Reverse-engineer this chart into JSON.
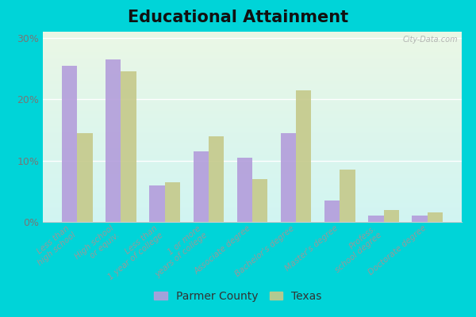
{
  "title": "Educational Attainment",
  "categories": [
    "Less than\nhigh school",
    "High school\nor equiv.",
    "Less than\n1 year of college",
    "1 or more\nyears of college",
    "Associate degree",
    "Bachelor's degree",
    "Master's degree",
    "Profess.\nschool degree",
    "Doctorate degree"
  ],
  "parmer_county": [
    25.5,
    26.5,
    6.0,
    11.5,
    10.5,
    14.5,
    3.5,
    1.0,
    1.0
  ],
  "texas": [
    14.5,
    24.5,
    6.5,
    14.0,
    7.0,
    21.5,
    8.5,
    2.0,
    1.5
  ],
  "parmer_color": "#b39ddb",
  "texas_color": "#c5c98a",
  "cyan_background": "#00d4d8",
  "plot_bg_color": "#dff0e0",
  "ylim": [
    0,
    31
  ],
  "yticks": [
    0,
    10,
    20,
    30
  ],
  "legend_labels": [
    "Parmer County",
    "Texas"
  ],
  "watermark": "City-Data.com",
  "title_fontsize": 15,
  "axis_label_fontsize": 7.5
}
